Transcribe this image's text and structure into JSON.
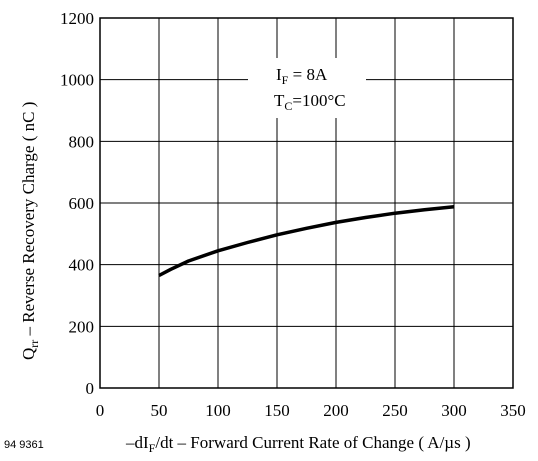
{
  "figure_id": "94 9361",
  "chart_data": {
    "type": "line",
    "title": "",
    "xlabel": {
      "prefix": "–dI",
      "sub": "F",
      "suffix": "/dt – Forward Current Rate of Change ( A/µs )"
    },
    "ylabel": {
      "prefix": "Q",
      "sub": "rr",
      "suffix": " – Reverse Recovery Charge ( nC )"
    },
    "xlim": [
      0,
      350
    ],
    "ylim": [
      0,
      1200
    ],
    "xticks": [
      "0",
      "50",
      "100",
      "150",
      "200",
      "250",
      "300",
      "350"
    ],
    "yticks": [
      "0",
      "200",
      "400",
      "600",
      "800",
      "1000",
      "1200"
    ],
    "grid": true,
    "annotation": {
      "line1": {
        "prefix": "I",
        "sub": "F",
        "suffix": " = 8A"
      },
      "line2": {
        "prefix": "T",
        "sub": "C",
        "suffix": "=100°C"
      }
    },
    "series": [
      {
        "x": [
          50,
          60,
          75,
          100,
          125,
          150,
          175,
          200,
          225,
          250,
          275,
          300
        ],
        "y": [
          365,
          385,
          412,
          445,
          472,
          497,
          518,
          537,
          553,
          567,
          578,
          588
        ]
      }
    ]
  }
}
